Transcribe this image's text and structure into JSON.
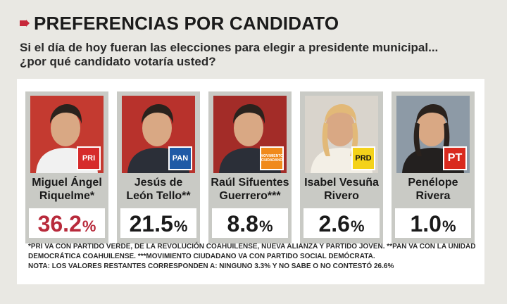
{
  "header": {
    "title": "PREFERENCIAS POR CANDIDATO",
    "question_line1": "Si el día de hoy fueran las elecciones para elegir a presidente municipal...",
    "question_line2": "¿por qué candidato votaría usted?",
    "accent_color": "#c7283a"
  },
  "chart_data": {
    "type": "table",
    "title": "PREFERENCIAS POR CANDIDATO",
    "categories": [
      "Miguel Ángel Riquelme*",
      "Jesús de León Tello**",
      "Raúl Sifuentes Guerrero***",
      "Isabel Vesuña Rivero",
      "Penélope Rivera"
    ],
    "series": [
      {
        "values": [
          36.2,
          21.5,
          8.8,
          2.6,
          1.0
        ]
      }
    ],
    "unit": "%"
  },
  "candidates": [
    {
      "name_line1": "Miguel Ángel",
      "name_line2": "Riquelme*",
      "value": "36.2",
      "unit": "%",
      "party": "PRI",
      "party_label": "PRI",
      "value_color": "#b82a3b",
      "party_color": "#d62b2b",
      "photo_bg": "#c43a30"
    },
    {
      "name_line1": "Jesús de",
      "name_line2": "León Tello**",
      "value": "21.5",
      "unit": "%",
      "party": "PAN",
      "party_label": "PAN",
      "value_color": "#1a1a1a",
      "party_color": "#1f5aa6",
      "photo_bg": "#b8322c"
    },
    {
      "name_line1": "Raúl Sifuentes",
      "name_line2": "Guerrero***",
      "value": "8.8",
      "unit": "%",
      "party": "MOVIMIENTO CIUDADANO",
      "party_label": "MOVIMIENTO CIUDADANO",
      "value_color": "#1a1a1a",
      "party_color": "#f08a1c",
      "photo_bg": "#a32c28"
    },
    {
      "name_line1": "Isabel Vesuña",
      "name_line2": "Rivero",
      "value": "2.6",
      "unit": "%",
      "party": "PRD",
      "party_label": "PRD",
      "value_color": "#1a1a1a",
      "party_color": "#f4d21a",
      "photo_bg": "#d9d4cc"
    },
    {
      "name_line1": "Penélope",
      "name_line2": "Rivera",
      "value": "1.0",
      "unit": "%",
      "party": "PT",
      "party_label": "PT",
      "value_color": "#1a1a1a",
      "party_color": "#d92a1e",
      "photo_bg": "#8d9aa6"
    }
  ],
  "notes": {
    "line1": "*PRI VA CON PARTIDO VERDE, DE LA REVOLUCIÓN COAHUILENSE, NUEVA ALIANZA Y PARTIDO JOVEN. **PAN VA CON LA UNIDAD",
    "line2": "DEMOCRÁTICA COAHUILENSE. ***MOVIMIENTO CIUDADANO VA CON PARTIDO SOCIAL DEMÓCRATA.",
    "line3": "NOTA: LOS VALORES RESTANTES CORRESPONDEN A: NINGUNO 3.3% Y NO SABE O NO CONTESTÓ 26.6%"
  }
}
